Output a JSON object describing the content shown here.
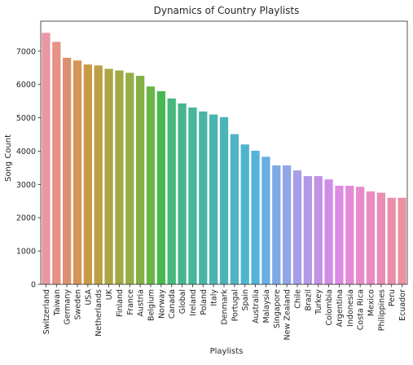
{
  "chart_data": {
    "type": "bar",
    "title": "Dynamics of Country Playlists",
    "xlabel": "Playlists",
    "ylabel": "Song Count",
    "ylim": [
      0,
      7900
    ],
    "yticks": [
      0,
      1000,
      2000,
      3000,
      4000,
      5000,
      6000,
      7000
    ],
    "grid": false,
    "categories": [
      "Switzerland",
      "Taiwan",
      "Germany",
      "Sweden",
      "USA",
      "Netherlands",
      "UK",
      "Finland",
      "France",
      "Austria",
      "Belgium",
      "Norway",
      "Canada",
      "Global",
      "Ireland",
      "Poland",
      "Italy",
      "Denmark",
      "Portugal",
      "Spain",
      "Australia",
      "Malaysia",
      "Singapore",
      "New Zealand",
      "Chile",
      "Brazil",
      "Turkey",
      "Colombia",
      "Argentina",
      "Indonesia",
      "Costa Rica",
      "Mexico",
      "Philippines",
      "Peru",
      "Ecuador"
    ],
    "values": [
      7550,
      7280,
      6800,
      6720,
      6600,
      6570,
      6470,
      6420,
      6350,
      6260,
      5940,
      5800,
      5580,
      5430,
      5310,
      5190,
      5100,
      5020,
      4510,
      4200,
      4010,
      3830,
      3570,
      3570,
      3420,
      3250,
      3250,
      3150,
      2960,
      2960,
      2930,
      2790,
      2750,
      2600,
      2600
    ],
    "colors": [
      "#ea96a3",
      "#e69286",
      "#dc9070",
      "#d69556",
      "#c99a45",
      "#bb9f44",
      "#ada444",
      "#a2a845",
      "#95ad45",
      "#85b046",
      "#6ab548",
      "#48b94f",
      "#47b77a",
      "#47b68e",
      "#48b69b",
      "#49b5a6",
      "#4ab5b0",
      "#4bb4b9",
      "#4db5c3",
      "#4fb5cd",
      "#54b3d9",
      "#67aee4",
      "#7ea9e6",
      "#92a5e6",
      "#a59fe6",
      "#b398e6",
      "#c192e6",
      "#cf8ee5",
      "#dd8be3",
      "#e48bd8",
      "#e68ccc",
      "#e88cc2",
      "#e98db5",
      "#e98fab",
      "#ea92a1"
    ]
  }
}
